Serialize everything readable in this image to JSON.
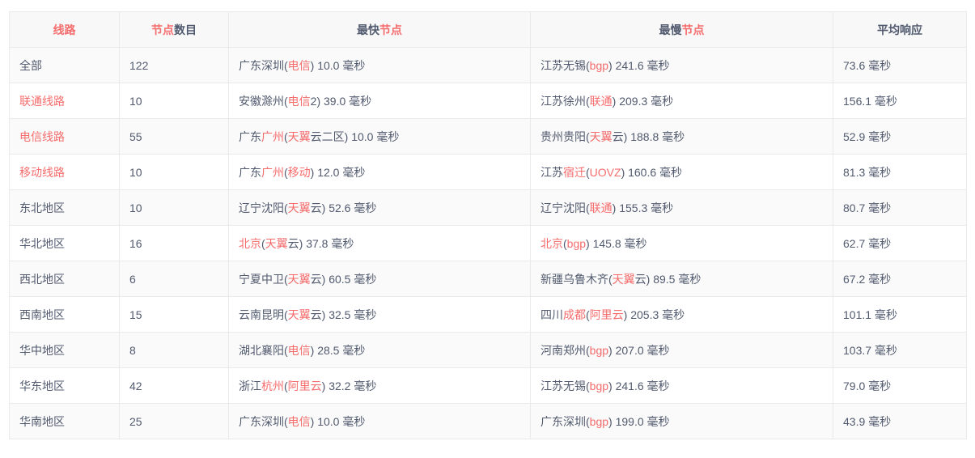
{
  "colors": {
    "accent": "#f56c6c",
    "text": "#515a6e",
    "border": "#e8eaec",
    "header_bg": "#f8f8f9",
    "stripe_bg": "#fafafa",
    "page_bg": "#ffffff"
  },
  "table": {
    "headers": [
      {
        "key": "line",
        "segments": [
          {
            "t": "线路",
            "hl": true
          }
        ]
      },
      {
        "key": "count",
        "segments": [
          {
            "t": "节点",
            "hl": true
          },
          {
            "t": "数目",
            "hl": false
          }
        ]
      },
      {
        "key": "fastest",
        "segments": [
          {
            "t": "最快",
            "hl": false
          },
          {
            "t": "节点",
            "hl": true
          }
        ]
      },
      {
        "key": "slowest",
        "segments": [
          {
            "t": "最慢",
            "hl": false
          },
          {
            "t": "节点",
            "hl": true
          }
        ]
      },
      {
        "key": "avg",
        "segments": [
          {
            "t": "平均响应",
            "hl": false
          }
        ]
      }
    ],
    "rows": [
      {
        "line": [
          {
            "t": "全部",
            "hl": false
          }
        ],
        "count": "122",
        "fastest": [
          {
            "t": "广东深圳(",
            "hl": false
          },
          {
            "t": "电信",
            "hl": true
          },
          {
            "t": ") 10.0 毫秒",
            "hl": false
          }
        ],
        "slowest": [
          {
            "t": "江苏无锡(",
            "hl": false
          },
          {
            "t": "bgp",
            "hl": true
          },
          {
            "t": ") 241.6 毫秒",
            "hl": false
          }
        ],
        "avg": "73.6 毫秒"
      },
      {
        "line": [
          {
            "t": "联通线路",
            "hl": true
          }
        ],
        "count": "10",
        "fastest": [
          {
            "t": "安徽滁州(",
            "hl": false
          },
          {
            "t": "电信",
            "hl": true
          },
          {
            "t": "2) 39.0 毫秒",
            "hl": false
          }
        ],
        "slowest": [
          {
            "t": "江苏徐州(",
            "hl": false
          },
          {
            "t": "联通",
            "hl": true
          },
          {
            "t": ") 209.3 毫秒",
            "hl": false
          }
        ],
        "avg": "156.1 毫秒"
      },
      {
        "line": [
          {
            "t": "电信线路",
            "hl": true
          }
        ],
        "count": "55",
        "fastest": [
          {
            "t": "广东",
            "hl": false
          },
          {
            "t": "广州",
            "hl": true
          },
          {
            "t": "(",
            "hl": false
          },
          {
            "t": "天翼",
            "hl": true
          },
          {
            "t": "云二区) 10.0 毫秒",
            "hl": false
          }
        ],
        "slowest": [
          {
            "t": "贵州贵阳(",
            "hl": false
          },
          {
            "t": "天翼",
            "hl": true
          },
          {
            "t": "云) 188.8 毫秒",
            "hl": false
          }
        ],
        "avg": "52.9 毫秒"
      },
      {
        "line": [
          {
            "t": "移动线路",
            "hl": true
          }
        ],
        "count": "10",
        "fastest": [
          {
            "t": "广东",
            "hl": false
          },
          {
            "t": "广州",
            "hl": true
          },
          {
            "t": "(",
            "hl": false
          },
          {
            "t": "移动",
            "hl": true
          },
          {
            "t": ") 12.0 毫秒",
            "hl": false
          }
        ],
        "slowest": [
          {
            "t": "江苏",
            "hl": false
          },
          {
            "t": "宿迁",
            "hl": true
          },
          {
            "t": "(",
            "hl": false
          },
          {
            "t": "UOVZ",
            "hl": true
          },
          {
            "t": ") 160.6 毫秒",
            "hl": false
          }
        ],
        "avg": "81.3 毫秒"
      },
      {
        "line": [
          {
            "t": "东北地区",
            "hl": false
          }
        ],
        "count": "10",
        "fastest": [
          {
            "t": "辽宁沈阳(",
            "hl": false
          },
          {
            "t": "天翼",
            "hl": true
          },
          {
            "t": "云) 52.6 毫秒",
            "hl": false
          }
        ],
        "slowest": [
          {
            "t": "辽宁沈阳(",
            "hl": false
          },
          {
            "t": "联通",
            "hl": true
          },
          {
            "t": ") 155.3 毫秒",
            "hl": false
          }
        ],
        "avg": "80.7 毫秒"
      },
      {
        "line": [
          {
            "t": "华北地区",
            "hl": false
          }
        ],
        "count": "16",
        "fastest": [
          {
            "t": "北京",
            "hl": true
          },
          {
            "t": "(",
            "hl": false
          },
          {
            "t": "天翼",
            "hl": true
          },
          {
            "t": "云) 37.8 毫秒",
            "hl": false
          }
        ],
        "slowest": [
          {
            "t": "北京",
            "hl": true
          },
          {
            "t": "(",
            "hl": false
          },
          {
            "t": "bgp",
            "hl": true
          },
          {
            "t": ") 145.8 毫秒",
            "hl": false
          }
        ],
        "avg": "62.7 毫秒"
      },
      {
        "line": [
          {
            "t": "西北地区",
            "hl": false
          }
        ],
        "count": "6",
        "fastest": [
          {
            "t": "宁夏中卫(",
            "hl": false
          },
          {
            "t": "天翼",
            "hl": true
          },
          {
            "t": "云) 60.5 毫秒",
            "hl": false
          }
        ],
        "slowest": [
          {
            "t": "新疆乌鲁木齐(",
            "hl": false
          },
          {
            "t": "天翼",
            "hl": true
          },
          {
            "t": "云) 89.5 毫秒",
            "hl": false
          }
        ],
        "avg": "67.2 毫秒"
      },
      {
        "line": [
          {
            "t": "西南地区",
            "hl": false
          }
        ],
        "count": "15",
        "fastest": [
          {
            "t": "云南昆明(",
            "hl": false
          },
          {
            "t": "天翼",
            "hl": true
          },
          {
            "t": "云) 32.5 毫秒",
            "hl": false
          }
        ],
        "slowest": [
          {
            "t": "四川",
            "hl": false
          },
          {
            "t": "成都",
            "hl": true
          },
          {
            "t": "(",
            "hl": false
          },
          {
            "t": "阿里云",
            "hl": true
          },
          {
            "t": ") 205.3 毫秒",
            "hl": false
          }
        ],
        "avg": "101.1 毫秒"
      },
      {
        "line": [
          {
            "t": "华中地区",
            "hl": false
          }
        ],
        "count": "8",
        "fastest": [
          {
            "t": "湖北襄阳(",
            "hl": false
          },
          {
            "t": "电信",
            "hl": true
          },
          {
            "t": ") 28.5 毫秒",
            "hl": false
          }
        ],
        "slowest": [
          {
            "t": "河南郑州(",
            "hl": false
          },
          {
            "t": "bgp",
            "hl": true
          },
          {
            "t": ") 207.0 毫秒",
            "hl": false
          }
        ],
        "avg": "103.7 毫秒"
      },
      {
        "line": [
          {
            "t": "华东地区",
            "hl": false
          }
        ],
        "count": "42",
        "fastest": [
          {
            "t": "浙江",
            "hl": false
          },
          {
            "t": "杭州",
            "hl": true
          },
          {
            "t": "(",
            "hl": false
          },
          {
            "t": "阿里云",
            "hl": true
          },
          {
            "t": ") 32.2 毫秒",
            "hl": false
          }
        ],
        "slowest": [
          {
            "t": "江苏无锡(",
            "hl": false
          },
          {
            "t": "bgp",
            "hl": true
          },
          {
            "t": ") 241.6 毫秒",
            "hl": false
          }
        ],
        "avg": "79.0 毫秒"
      },
      {
        "line": [
          {
            "t": "华南地区",
            "hl": false
          }
        ],
        "count": "25",
        "fastest": [
          {
            "t": "广东深圳(",
            "hl": false
          },
          {
            "t": "电信",
            "hl": true
          },
          {
            "t": ") 10.0 毫秒",
            "hl": false
          }
        ],
        "slowest": [
          {
            "t": "广东深圳(",
            "hl": false
          },
          {
            "t": "bgp",
            "hl": true
          },
          {
            "t": ") 199.0 毫秒",
            "hl": false
          }
        ],
        "avg": "43.9 毫秒"
      }
    ]
  }
}
